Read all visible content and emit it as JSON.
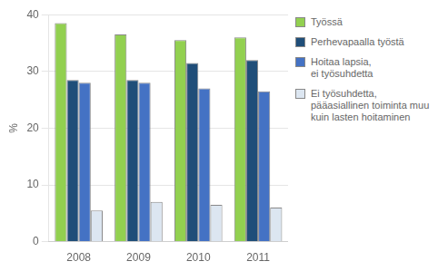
{
  "chart_data": {
    "type": "bar",
    "categories": [
      "2008",
      "2009",
      "2010",
      "2011"
    ],
    "series": [
      {
        "name": "Työssä",
        "color": "#92d050",
        "values": [
          38.5,
          36.5,
          35.5,
          36.0
        ]
      },
      {
        "name": "Perhevapaalla työstä",
        "color": "#1f4e79",
        "values": [
          28.5,
          28.5,
          31.5,
          32.0
        ]
      },
      {
        "name": "Hoitaa lapsia,\nei työsuhdetta",
        "color": "#4472c4",
        "values": [
          28.0,
          28.0,
          27.0,
          26.5
        ]
      },
      {
        "name": "Ei työsuhdetta,\npääasiallinen toiminta muu\nkuin lasten hoitaminen",
        "color": "#dce6f1",
        "values": [
          5.5,
          7.0,
          6.5,
          6.0
        ]
      }
    ],
    "ylabel": "%",
    "ylim": [
      0,
      40
    ],
    "yticks": [
      0,
      10,
      20,
      30,
      40
    ],
    "grid": true,
    "legend": "right"
  }
}
